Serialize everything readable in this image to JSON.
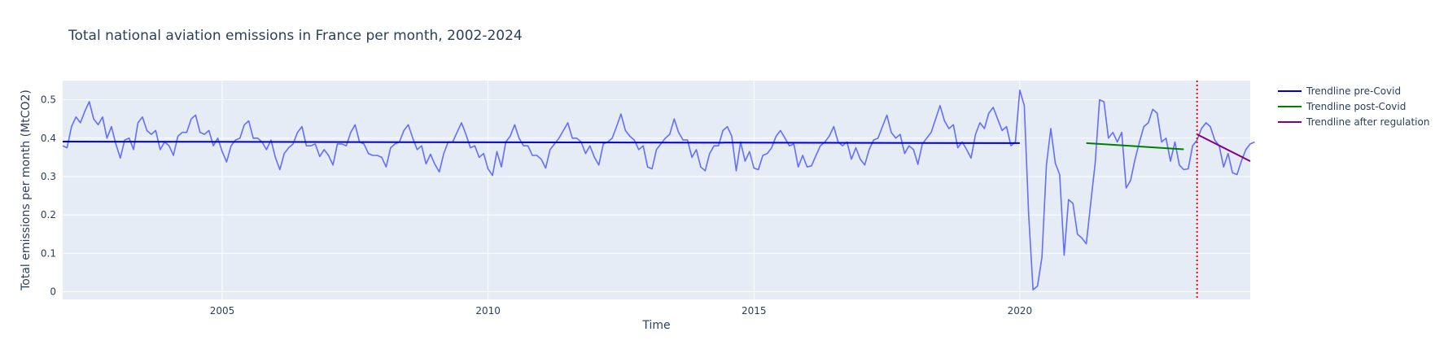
{
  "chart_data": {
    "type": "line",
    "title": "Total national aviation emissions in France per month, 2002-2024",
    "xlabel": "Time",
    "ylabel": "Total emissions per month (MtCO2)",
    "xlim": [
      "2002-01",
      "2024-05"
    ],
    "ylim": [
      -0.02,
      0.55
    ],
    "x_ticks": [
      "2005",
      "2010",
      "2015",
      "2020"
    ],
    "y_ticks": [
      "0",
      "0.1",
      "0.2",
      "0.3",
      "0.4",
      "0.5"
    ],
    "grid": true,
    "legend_position": "right",
    "colors": {
      "plot_bg": "#e5ecf6",
      "grid": "#ffffff",
      "emissions": "#636efa",
      "pre_covid": "#0000cc",
      "post_covid": "#008000",
      "after_regulation": "#800080",
      "regulation_marker": "#ff0000"
    },
    "series": [
      {
        "key": "emissions",
        "start": "2002-01",
        "values": [
          0.38,
          0.375,
          0.43,
          0.455,
          0.44,
          0.47,
          0.495,
          0.45,
          0.435,
          0.455,
          0.4,
          0.43,
          0.385,
          0.348,
          0.395,
          0.4,
          0.37,
          0.44,
          0.455,
          0.42,
          0.41,
          0.42,
          0.37,
          0.39,
          0.38,
          0.355,
          0.405,
          0.415,
          0.415,
          0.45,
          0.46,
          0.415,
          0.41,
          0.42,
          0.38,
          0.4,
          0.365,
          0.338,
          0.38,
          0.395,
          0.4,
          0.435,
          0.445,
          0.4,
          0.4,
          0.39,
          0.37,
          0.395,
          0.35,
          0.318,
          0.36,
          0.375,
          0.385,
          0.415,
          0.43,
          0.38,
          0.38,
          0.385,
          0.352,
          0.37,
          0.355,
          0.33,
          0.385,
          0.385,
          0.38,
          0.415,
          0.435,
          0.39,
          0.385,
          0.36,
          0.355,
          0.355,
          0.35,
          0.325,
          0.375,
          0.385,
          0.39,
          0.42,
          0.435,
          0.4,
          0.37,
          0.38,
          0.333,
          0.358,
          0.332,
          0.312,
          0.36,
          0.39,
          0.39,
          0.415,
          0.44,
          0.41,
          0.375,
          0.38,
          0.35,
          0.36,
          0.32,
          0.303,
          0.365,
          0.325,
          0.39,
          0.405,
          0.435,
          0.4,
          0.38,
          0.38,
          0.355,
          0.355,
          0.345,
          0.322,
          0.37,
          0.385,
          0.4,
          0.42,
          0.44,
          0.4,
          0.4,
          0.39,
          0.36,
          0.38,
          0.35,
          0.33,
          0.385,
          0.39,
          0.4,
          0.43,
          0.463,
          0.42,
          0.405,
          0.395,
          0.37,
          0.38,
          0.325,
          0.32,
          0.37,
          0.385,
          0.4,
          0.41,
          0.45,
          0.415,
          0.395,
          0.395,
          0.35,
          0.37,
          0.325,
          0.315,
          0.36,
          0.38,
          0.38,
          0.42,
          0.43,
          0.405,
          0.315,
          0.39,
          0.34,
          0.365,
          0.322,
          0.318,
          0.355,
          0.36,
          0.375,
          0.405,
          0.42,
          0.4,
          0.38,
          0.385,
          0.325,
          0.355,
          0.325,
          0.328,
          0.355,
          0.38,
          0.39,
          0.405,
          0.43,
          0.39,
          0.38,
          0.39,
          0.345,
          0.375,
          0.345,
          0.33,
          0.37,
          0.395,
          0.4,
          0.43,
          0.46,
          0.415,
          0.4,
          0.41,
          0.36,
          0.38,
          0.37,
          0.332,
          0.385,
          0.4,
          0.415,
          0.45,
          0.485,
          0.445,
          0.425,
          0.435,
          0.375,
          0.39,
          0.37,
          0.348,
          0.41,
          0.44,
          0.425,
          0.465,
          0.48,
          0.45,
          0.42,
          0.43,
          0.38,
          0.39,
          0.525,
          0.485,
          0.2,
          0.005,
          0.015,
          0.09,
          0.33,
          0.425,
          0.335,
          0.305,
          0.095,
          0.24,
          0.23,
          0.15,
          0.14,
          0.125,
          0.23,
          0.335,
          0.5,
          0.495,
          0.4,
          0.415,
          0.39,
          0.415,
          0.27,
          0.29,
          0.345,
          0.39,
          0.43,
          0.44,
          0.475,
          0.465,
          0.39,
          0.4,
          0.34,
          0.39,
          0.33,
          0.318,
          0.32,
          0.38,
          0.395,
          0.425,
          0.44,
          0.43,
          0.395,
          0.38,
          0.325,
          0.36,
          0.31,
          0.305,
          0.34,
          0.37,
          0.385,
          0.39
        ]
      },
      {
        "key": "pre_covid",
        "name": "Trendline pre-Covid",
        "points": [
          {
            "x": "2002-01",
            "y": 0.391
          },
          {
            "x": "2020-01",
            "y": 0.387
          }
        ]
      },
      {
        "key": "post_covid",
        "name": "Trendline post-Covid",
        "points": [
          {
            "x": "2021-04",
            "y": 0.387
          },
          {
            "x": "2023-02",
            "y": 0.371
          }
        ]
      },
      {
        "key": "after_regulation",
        "name": "Trendline after regulation",
        "points": [
          {
            "x": "2023-05",
            "y": 0.41
          },
          {
            "x": "2024-05",
            "y": 0.34
          }
        ]
      }
    ],
    "vertical_marker": {
      "x": "2023-05",
      "style": "dotted"
    }
  }
}
